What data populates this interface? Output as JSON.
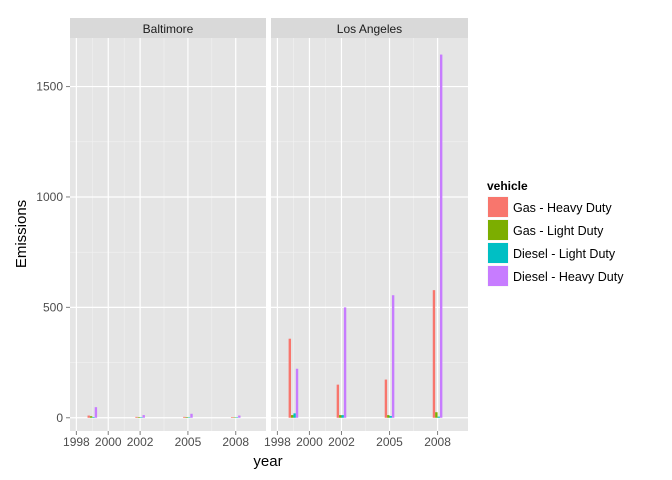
{
  "chart_data": {
    "type": "bar",
    "ylabel": "Emissions",
    "xlabel": "year",
    "ylim": [
      -60,
      1720
    ],
    "xlim": [
      1997.6,
      2009.9
    ],
    "y_ticks": [
      0,
      500,
      1000,
      1500
    ],
    "y_tick_labels": [
      "0",
      "500",
      "1000",
      "1500"
    ],
    "x_ticks": [
      1998,
      2000,
      2002,
      2005,
      2008
    ],
    "x_tick_labels": [
      "1998",
      "2000",
      "2002",
      "2005",
      "2008"
    ],
    "years": [
      1999,
      2002,
      2005,
      2008
    ],
    "bar_width_years": 0.6,
    "grid": true,
    "legend": {
      "title": "vehicle",
      "position": "right",
      "entries": [
        "Gas - Heavy Duty",
        "Gas - Light Duty",
        "Diesel - Light Duty",
        "Diesel - Heavy Duty"
      ]
    },
    "series_colors": [
      "#F8766D",
      "#7CAE00",
      "#00BFC4",
      "#C77CFF"
    ],
    "panels": [
      {
        "label": "Baltimore",
        "series": [
          {
            "name": "Gas - Heavy Duty",
            "values": [
              10,
              4,
              4,
              3
            ]
          },
          {
            "name": "Gas - Light Duty",
            "values": [
              7,
              3,
              3,
              2
            ]
          },
          {
            "name": "Diesel - Light Duty",
            "values": [
              3,
              2,
              2,
              2
            ]
          },
          {
            "name": "Diesel - Heavy Duty",
            "values": [
              48,
              12,
              18,
              10
            ]
          }
        ]
      },
      {
        "label": "Los Angeles",
        "series": [
          {
            "name": "Gas - Heavy Duty",
            "values": [
              358,
              150,
              173,
              578
            ]
          },
          {
            "name": "Gas - Light Duty",
            "values": [
              12,
              12,
              12,
              25
            ]
          },
          {
            "name": "Diesel - Light Duty",
            "values": [
              20,
              12,
              8,
              5
            ]
          },
          {
            "name": "Diesel - Heavy Duty",
            "values": [
              222,
              500,
              555,
              1645
            ]
          }
        ]
      }
    ]
  }
}
